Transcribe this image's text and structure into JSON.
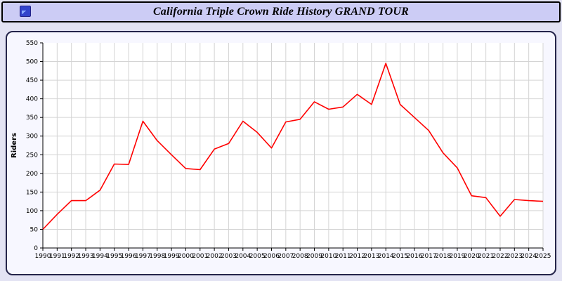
{
  "header": {
    "title": "California Triple Crown Ride History GRAND TOUR"
  },
  "colors": {
    "page_bg": "#e3e3f3",
    "header_bg": "#ccccf5",
    "panel_bg": "#f7f7ff",
    "plot_bg": "#ffffff",
    "grid": "#d4d4d4",
    "axis": "#000000",
    "line": "#ff0000"
  },
  "chart_data": {
    "type": "line",
    "title": "California Triple Crown Ride History GRAND TOUR",
    "xlabel": "",
    "ylabel": "Riders",
    "ylim": [
      0,
      550
    ],
    "ytick_step": 50,
    "grid": true,
    "legend": "none",
    "categories": [
      "1990",
      "1991",
      "1992",
      "1993",
      "1994",
      "1995",
      "1996",
      "1997",
      "1998",
      "1999",
      "2000",
      "2001",
      "2002",
      "2003",
      "2004",
      "2005",
      "2006",
      "2007",
      "2008",
      "2009",
      "2010",
      "2011",
      "2012",
      "2013",
      "2014",
      "2015",
      "2016",
      "2017",
      "2018",
      "2019",
      "2020",
      "2021",
      "2022",
      "2023",
      "2024",
      "2025"
    ],
    "series": [
      {
        "name": "Riders",
        "color": "#ff0000",
        "values": [
          50,
          90,
          127,
          127,
          155,
          225,
          224,
          340,
          288,
          250,
          213,
          210,
          265,
          280,
          340,
          310,
          268,
          338,
          345,
          392,
          372,
          378,
          412,
          385,
          495,
          385,
          350,
          315,
          255,
          215,
          140,
          135,
          85,
          130,
          127,
          125
        ]
      }
    ]
  }
}
